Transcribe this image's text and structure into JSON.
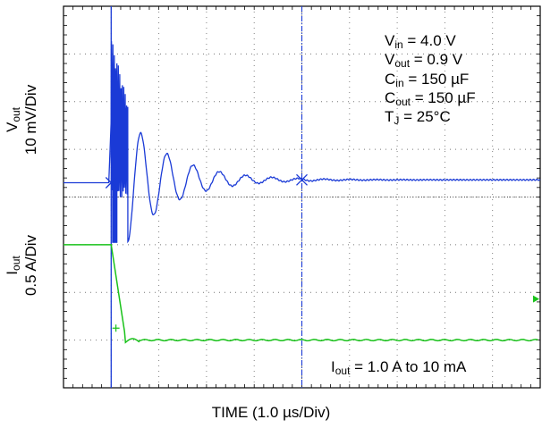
{
  "chart_data": {
    "type": "line",
    "title": "",
    "xlabel_base": "TIME (1.0 ",
    "xlabel_unit": "µs/Div)",
    "grid": true,
    "divisions": {
      "x": 10,
      "y": 8
    },
    "x_range_us": [
      0,
      10
    ],
    "load_step_time_us": 1.0,
    "marker_time_us": 5.0,
    "channels": [
      {
        "name": "Vout",
        "axis_label_main": "V",
        "axis_label_sub": "out",
        "axis_scale": "10 mV/Div",
        "color": "#1a3ad6",
        "baseline_div": 4.3,
        "peak_deviation_mV": 29,
        "ringing_period_us": 0.55,
        "settling_time_us": 4.0
      },
      {
        "name": "Iout",
        "axis_label_main": "I",
        "axis_label_sub": "out",
        "axis_scale": "0.5 A/Div",
        "color": "#19c21a",
        "initial_A": 1.0,
        "final_A": 0.01,
        "pre_step_div": 3.0,
        "post_step_div": 1.0,
        "fall_time_us": 0.3
      }
    ],
    "conditions": [
      {
        "main": "V",
        "sub": "in",
        "rest": " = 4.0 V"
      },
      {
        "main": "V",
        "sub": "out",
        "rest": " = 0.9 V"
      },
      {
        "main": "C",
        "sub": "in",
        "rest": " = 150 µF"
      },
      {
        "main": "C",
        "sub": "out",
        "rest": " = 150 µF"
      },
      {
        "main": "T",
        "sub": "J",
        "rest": " = 25°C"
      }
    ],
    "annotation": {
      "main": "I",
      "sub": "out",
      "rest": " = 1.0 A to 10 mA"
    }
  }
}
